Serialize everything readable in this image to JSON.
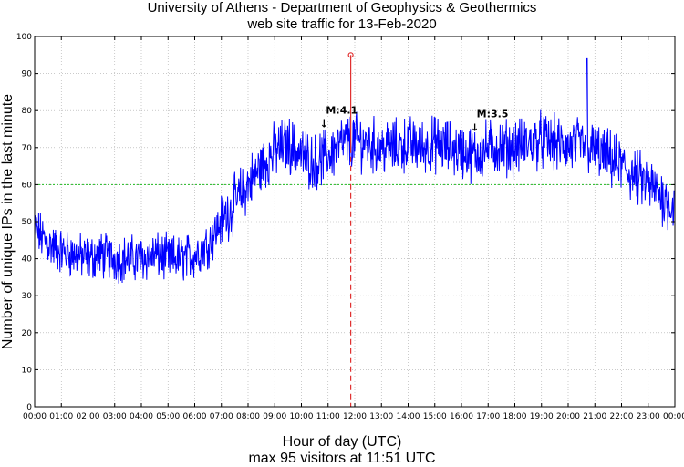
{
  "chart_data": {
    "type": "line",
    "title": "University of Athens - Department of Geophysics & Geothermics",
    "subtitle": "web site traffic for 13-Feb-2020",
    "xlabel": "Hour of day (UTC)",
    "ylabel": "Number of unique IPs in the last minute",
    "footer": "max 95 visitors at 11:51 UTC",
    "xlim": [
      0,
      24
    ],
    "ylim": [
      0,
      100
    ],
    "grid": true,
    "x_tick_labels": [
      "00:00",
      "01:00",
      "02:00",
      "03:00",
      "04:00",
      "05:00",
      "06:00",
      "07:00",
      "08:00",
      "09:00",
      "10:00",
      "11:00",
      "12:00",
      "13:00",
      "14:00",
      "15:00",
      "16:00",
      "17:00",
      "18:00",
      "19:00",
      "20:00",
      "21:00",
      "22:00",
      "23:00",
      "00:00"
    ],
    "y_ticks": [
      0,
      10,
      20,
      30,
      40,
      50,
      60,
      70,
      80,
      90,
      100
    ],
    "reference_line": {
      "y": 60,
      "color": "#22bb22"
    },
    "max_marker": {
      "hour": 11.85,
      "value": 95,
      "color": "#e03030"
    },
    "annotations": [
      {
        "label": "M:4.1",
        "hour": 10.85,
        "value": 78
      },
      {
        "label": "M:3.5",
        "hour": 16.5,
        "value": 77
      }
    ],
    "series": [
      {
        "color": "#0000ff",
        "hours": [
          0,
          0.5,
          1,
          1.5,
          2,
          2.5,
          3,
          3.5,
          4,
          4.5,
          5,
          5.5,
          6,
          6.5,
          7,
          7.5,
          8,
          8.5,
          9,
          9.5,
          10,
          10.5,
          11,
          11.5,
          12,
          12.5,
          13,
          13.5,
          14,
          14.5,
          15,
          15.5,
          16,
          16.5,
          17,
          17.5,
          18,
          18.5,
          19,
          19.5,
          20,
          20.5,
          21,
          21.5,
          22,
          22.5,
          23,
          23.5,
          24
        ],
        "values": [
          48,
          44,
          42,
          41,
          40,
          41,
          40,
          40,
          40,
          41,
          40,
          40,
          41,
          44,
          50,
          55,
          60,
          65,
          69,
          71,
          68,
          66,
          68,
          71,
          72,
          71,
          70,
          70,
          71,
          70,
          71,
          70,
          69,
          68,
          70,
          70,
          70,
          71,
          72,
          71,
          70,
          71,
          69,
          67,
          65,
          62,
          60,
          57,
          54
        ]
      }
    ]
  }
}
